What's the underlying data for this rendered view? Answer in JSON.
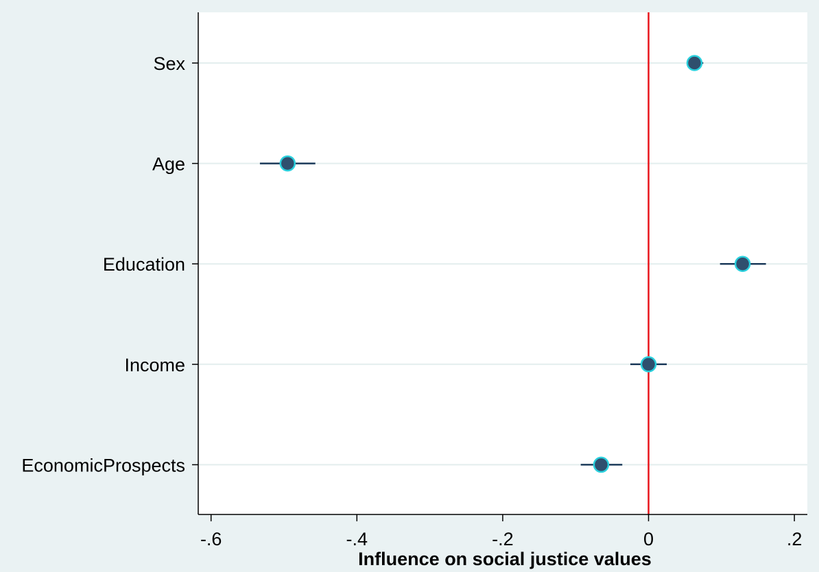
{
  "chart_data": {
    "type": "scatter",
    "subtype": "coefficient-plot",
    "title": "",
    "xlabel": "Influence on social justice values",
    "ylabel": "",
    "xlim": [
      -0.62,
      0.22
    ],
    "xticks": [
      -0.6,
      -0.4,
      -0.2,
      0,
      0.2
    ],
    "xtick_labels": [
      "-.6",
      "-.4",
      "-.2",
      "0",
      ".2"
    ],
    "categories": [
      "Sex",
      "Age",
      "Education",
      "Income",
      "EconomicProspects"
    ],
    "series": [
      {
        "estimates": [
          0.063,
          -0.495,
          0.129,
          0.0,
          -0.065
        ],
        "ci_low": [
          0.053,
          -0.533,
          0.098,
          -0.025,
          -0.093
        ],
        "ci_high": [
          0.075,
          -0.457,
          0.161,
          0.025,
          -0.036
        ]
      }
    ],
    "reference_line": {
      "x": 0,
      "color": "#e8151b"
    },
    "grid": "horizontal",
    "legend": "none",
    "colors": {
      "background": "#eaf2f3",
      "plot_area": "#ffffff",
      "marker_fill": "#2f4f6e",
      "marker_edge": "#2ad0dd",
      "ci_line": "#1b3a5a",
      "gridline": "#e3eeee"
    }
  }
}
